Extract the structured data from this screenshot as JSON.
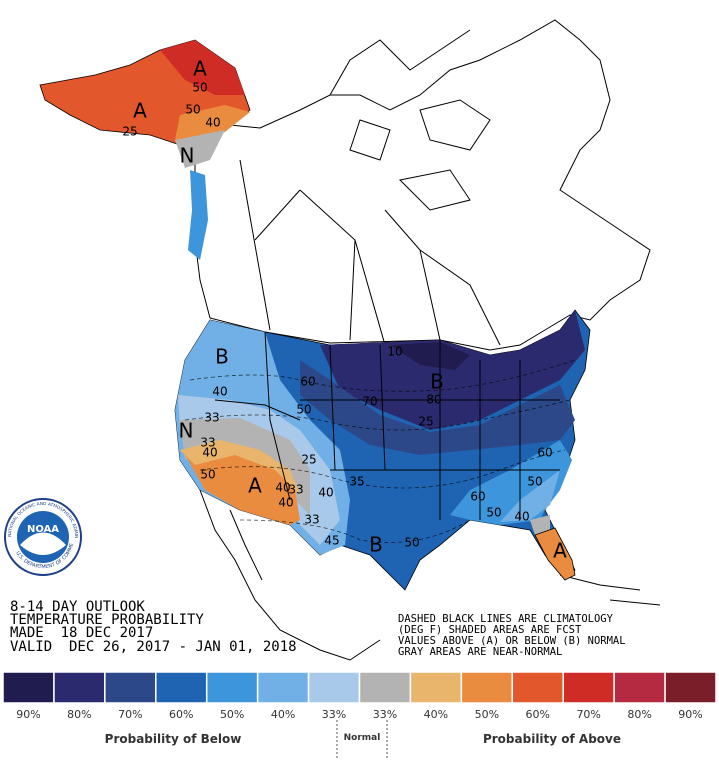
{
  "header": {
    "lines": [
      "8-14 DAY OUTLOOK",
      "TEMPERATURE PROBABILITY",
      "MADE  18 DEC 2017",
      "VALID  DEC 26, 2017 - JAN 01, 2018"
    ]
  },
  "notes": [
    "DASHED BLACK LINES ARE CLIMATOLOGY",
    "(DEG F) SHADED AREAS ARE FCST",
    "VALUES ABOVE (A) OR BELOW (B) NORMAL",
    "GRAY AREAS ARE NEAR-NORMAL"
  ],
  "logo": {
    "name": "NOAA",
    "ring_top": "NATIONAL OCEANIC AND ATMOSPHERIC ADMINISTRATION",
    "ring_bottom": "U.S. DEPARTMENT OF COMMERCE"
  },
  "map": {
    "labels": [
      "A",
      "50",
      "A",
      "50",
      "40",
      "25",
      "N",
      "B",
      "40",
      "33",
      "N",
      "33",
      "40",
      "50",
      "A",
      "40",
      "33",
      "40",
      "33",
      "40",
      "45",
      "B",
      "60",
      "50",
      "25",
      "35",
      "70",
      "10",
      "B",
      "80",
      "25",
      "60",
      "50",
      "60",
      "50",
      "40",
      "A",
      "50"
    ]
  },
  "legend": {
    "bins": [
      {
        "label": "90%",
        "color": "#201c4f"
      },
      {
        "label": "80%",
        "color": "#2c2a6e"
      },
      {
        "label": "70%",
        "color": "#2d4888"
      },
      {
        "label": "60%",
        "color": "#1e64b2"
      },
      {
        "label": "50%",
        "color": "#3d95dc"
      },
      {
        "label": "40%",
        "color": "#70b0e6"
      },
      {
        "label": "33%",
        "color": "#a8c9ea"
      },
      {
        "label": "33%",
        "color": "#b3b3b3"
      },
      {
        "label": "40%",
        "color": "#e9b56c"
      },
      {
        "label": "50%",
        "color": "#e98c40"
      },
      {
        "label": "60%",
        "color": "#e2572b"
      },
      {
        "label": "70%",
        "color": "#cf2c26"
      },
      {
        "label": "80%",
        "color": "#b52a40"
      },
      {
        "label": "90%",
        "color": "#7a1e2a"
      }
    ],
    "below": "Probability of Below",
    "normal": "Normal",
    "above": "Probability of Above"
  }
}
